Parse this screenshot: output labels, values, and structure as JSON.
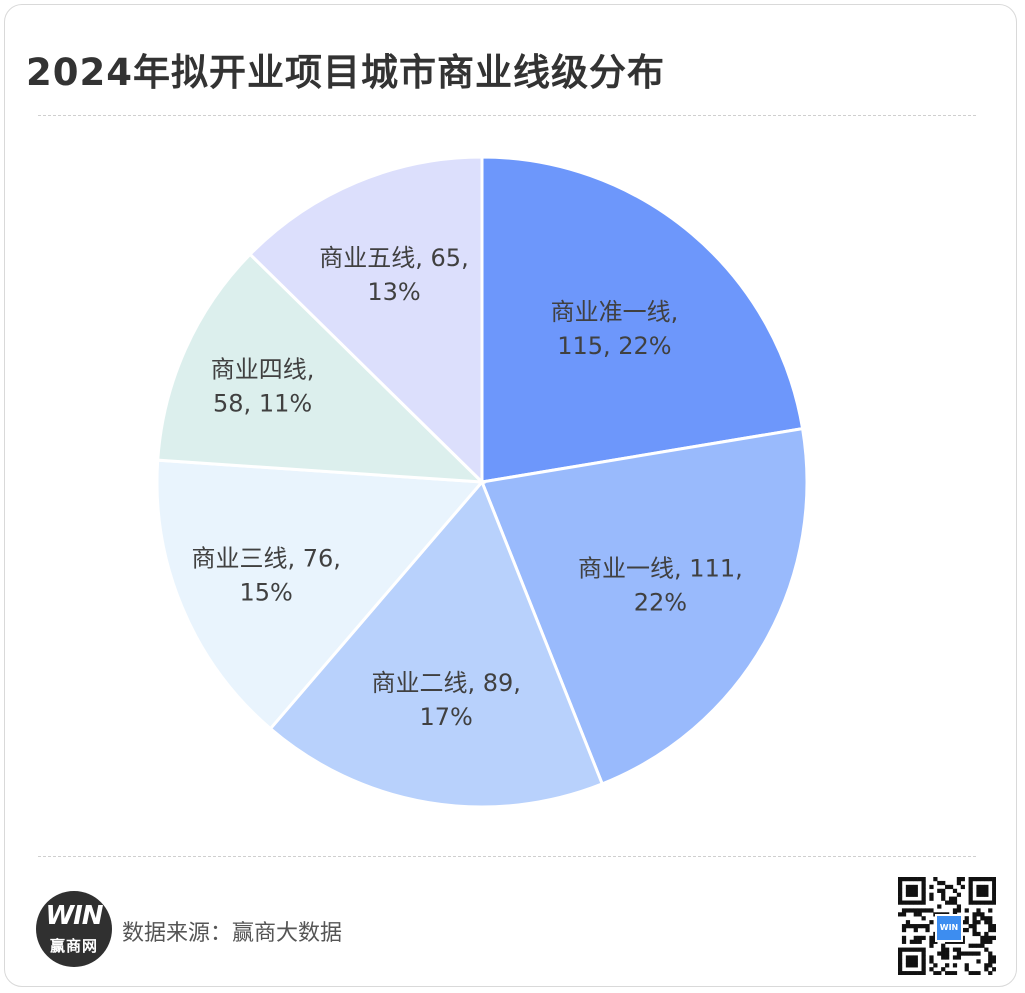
{
  "title": "2024年拟开业项目城市商业线级分布",
  "source_text": "数据来源：赢商大数据",
  "logo": {
    "mark": "WIN",
    "name": "赢商网"
  },
  "qr_badge": "WIN",
  "colors": {
    "商业准一线": "#6d97fb",
    "商业一线": "#99bafc",
    "商业二线": "#b8d1fc",
    "商业三线": "#e9f4fd",
    "商业四线": "#dcefed",
    "商业五线": "#dcdffc"
  },
  "chart_data": {
    "type": "pie",
    "title": "2024年拟开业项目城市商业线级分布",
    "slices": [
      {
        "name": "商业准一线",
        "value": 115,
        "percent": "22%",
        "line1": "商业准一线,",
        "line2": "115, 22%"
      },
      {
        "name": "商业一线",
        "value": 111,
        "percent": "22%",
        "line1": "商业一线, 111,",
        "line2": "22%"
      },
      {
        "name": "商业二线",
        "value": 89,
        "percent": "17%",
        "line1": "商业二线, 89,",
        "line2": "17%"
      },
      {
        "name": "商业三线",
        "value": 76,
        "percent": "15%",
        "line1": "商业三线, 76,",
        "line2": "15%"
      },
      {
        "name": "商业四线",
        "value": 58,
        "percent": "11%",
        "line1": "商业四线,",
        "line2": "58, 11%"
      },
      {
        "name": "商业五线",
        "value": 65,
        "percent": "13%",
        "line1": "商业五线, 65,",
        "line2": "13%"
      }
    ]
  }
}
